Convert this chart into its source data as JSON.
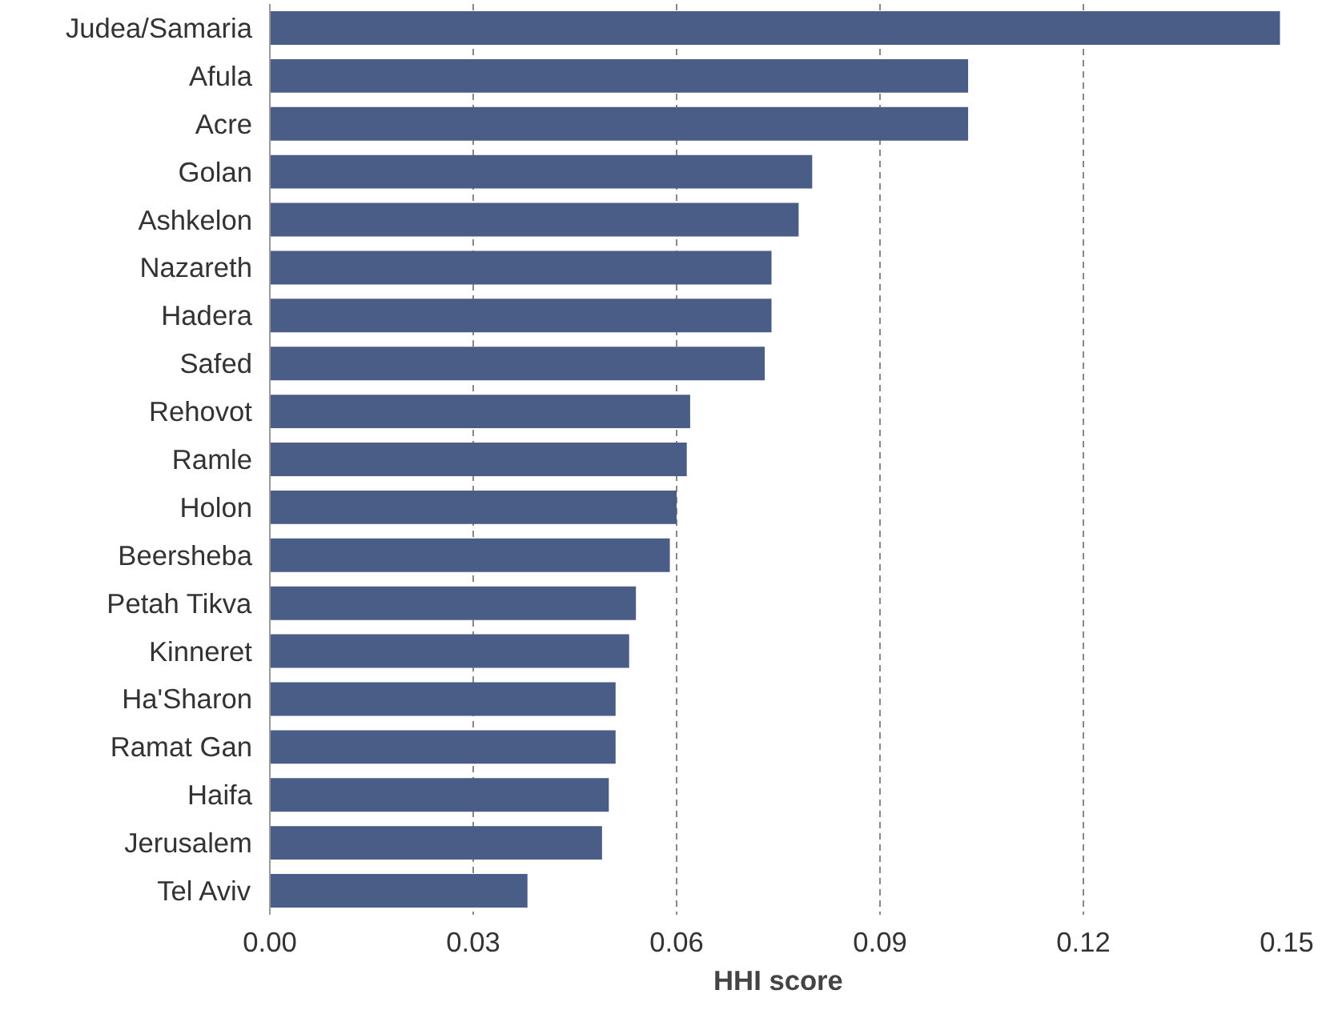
{
  "chart_data": {
    "type": "bar",
    "orientation": "horizontal",
    "xlabel": "HHI score",
    "categories": [
      "Judea/Samaria",
      "Afula",
      "Acre",
      "Golan",
      "Ashkelon",
      "Nazareth",
      "Hadera",
      "Safed",
      "Rehovot",
      "Ramle",
      "Holon",
      "Beersheba",
      "Petah Tikva",
      "Kinneret",
      "Ha'Sharon",
      "Ramat Gan",
      "Haifa",
      "Jerusalem",
      "Tel Aviv"
    ],
    "values": [
      0.149,
      0.103,
      0.103,
      0.08,
      0.078,
      0.074,
      0.074,
      0.073,
      0.062,
      0.0615,
      0.06,
      0.059,
      0.054,
      0.053,
      0.051,
      0.051,
      0.05,
      0.049,
      0.038
    ],
    "color": "#4a5d86",
    "xlim": [
      0,
      0.15
    ],
    "xticks": [
      {
        "value": 0,
        "label": "0.00"
      },
      {
        "value": 0.03,
        "label": "0.03"
      },
      {
        "value": 0.06,
        "label": "0.06"
      },
      {
        "value": 0.09,
        "label": "0.09"
      },
      {
        "value": 0.12,
        "label": "0.12"
      },
      {
        "value": 0.15,
        "label": "0.15"
      }
    ],
    "grid": "x"
  }
}
